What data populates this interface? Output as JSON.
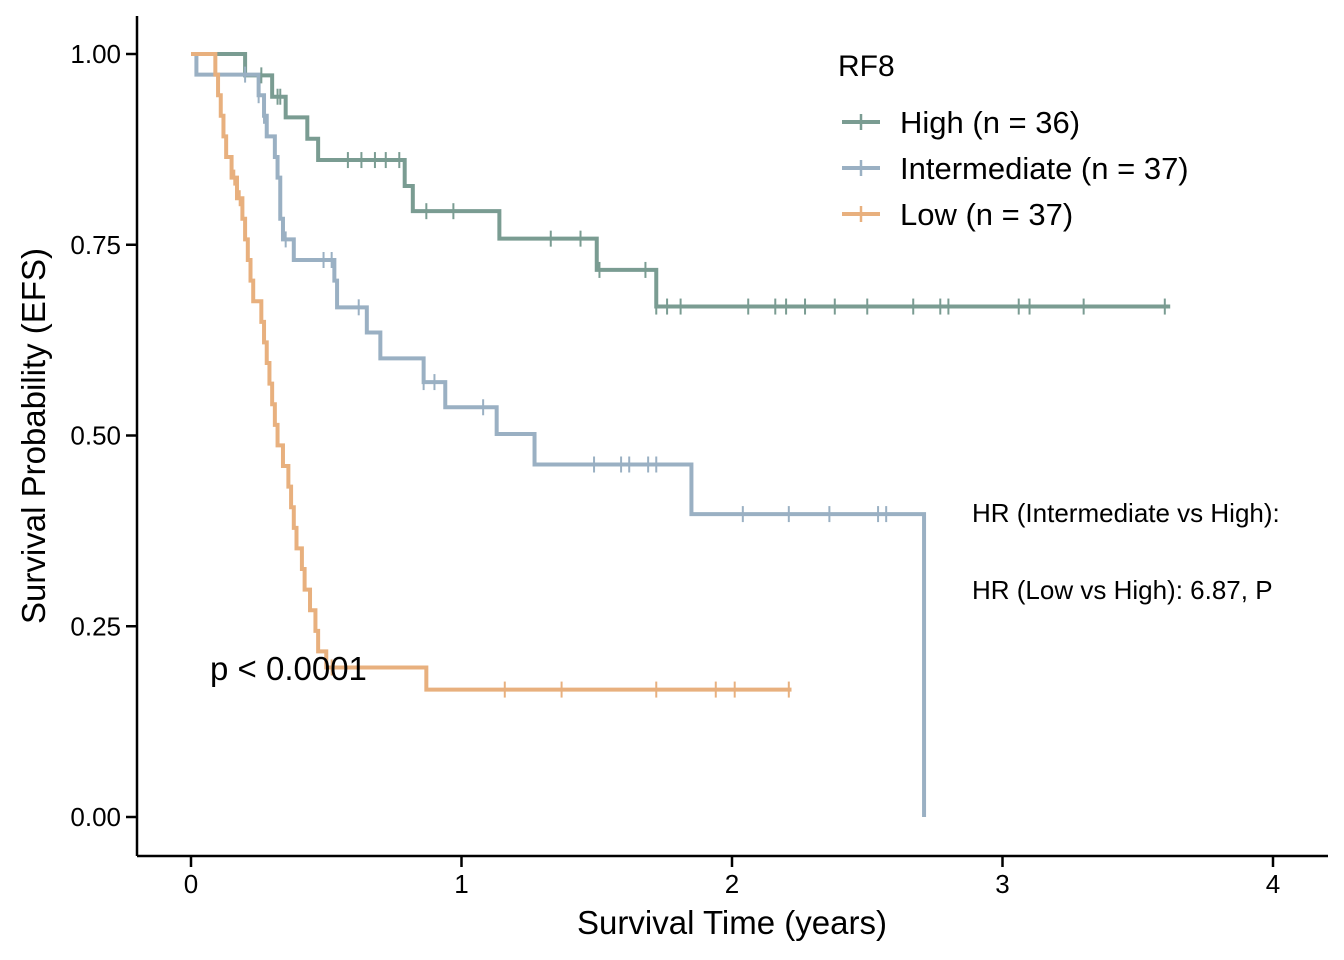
{
  "chart_data": {
    "type": "line",
    "xlabel": "Survival Time (years)",
    "ylabel": "Survival Probability (EFS)",
    "xlim": [
      -0.2,
      4.2
    ],
    "ylim": [
      -0.05,
      1.05
    ],
    "xticks": [
      0,
      1,
      2,
      3,
      4
    ],
    "xtick_labels": [
      "0",
      "1",
      "2",
      "3",
      "4"
    ],
    "yticks": [
      0,
      0.25,
      0.5,
      0.75,
      1
    ],
    "ytick_labels": [
      "0.00",
      "0.25",
      "0.50",
      "0.75",
      "1.00"
    ],
    "grid": false,
    "legend": {
      "title": "RF8",
      "position": "top-right",
      "entries": [
        "High (n = 36)",
        "Intermediate (n = 37)",
        "Low (n = 37)"
      ]
    },
    "pvalue_text": "p < 0.0001",
    "annotations": [
      "HR (Intermediate vs High):",
      "HR (Low vs High): 6.87, P"
    ],
    "series": [
      {
        "name": "High (n = 36)",
        "color": "#7a9c92",
        "steps": [
          [
            0,
            1.0
          ],
          [
            0.2,
            0.972
          ],
          [
            0.3,
            0.944
          ],
          [
            0.35,
            0.917
          ],
          [
            0.43,
            0.889
          ],
          [
            0.47,
            0.861
          ],
          [
            0.79,
            0.827
          ],
          [
            0.82,
            0.794
          ],
          [
            1.14,
            0.758
          ],
          [
            1.5,
            0.717
          ],
          [
            1.72,
            0.669
          ],
          [
            3.62,
            0.669
          ]
        ],
        "censors": [
          0.26,
          0.32,
          0.33,
          0.58,
          0.63,
          0.68,
          0.72,
          0.77,
          0.87,
          0.97,
          1.33,
          1.44,
          1.51,
          1.68,
          1.72,
          1.76,
          1.81,
          2.06,
          2.16,
          2.2,
          2.27,
          2.38,
          2.5,
          2.67,
          2.77,
          2.8,
          3.06,
          3.1,
          3.3,
          3.6
        ]
      },
      {
        "name": "Intermediate (n = 37)",
        "color": "#9ab0c3",
        "steps": [
          [
            0,
            1.0
          ],
          [
            0.02,
            0.973
          ],
          [
            0.25,
            0.946
          ],
          [
            0.27,
            0.919
          ],
          [
            0.28,
            0.892
          ],
          [
            0.31,
            0.865
          ],
          [
            0.32,
            0.838
          ],
          [
            0.33,
            0.784
          ],
          [
            0.34,
            0.757
          ],
          [
            0.38,
            0.73
          ],
          [
            0.53,
            0.703
          ],
          [
            0.54,
            0.668
          ],
          [
            0.65,
            0.635
          ],
          [
            0.7,
            0.601
          ],
          [
            0.86,
            0.57
          ],
          [
            0.94,
            0.537
          ],
          [
            1.13,
            0.502
          ],
          [
            1.27,
            0.462
          ],
          [
            1.85,
            0.397
          ],
          [
            2.71,
            0.0
          ]
        ],
        "censors": [
          0.2,
          0.25,
          0.27,
          0.35,
          0.49,
          0.52,
          0.62,
          0.86,
          0.9,
          1.08,
          1.49,
          1.59,
          1.62,
          1.69,
          1.72,
          2.04,
          2.21,
          2.36,
          2.54,
          2.57
        ]
      },
      {
        "name": "Low (n = 37)",
        "color": "#e8b07e",
        "steps": [
          [
            0,
            1.0
          ],
          [
            0.09,
            0.973
          ],
          [
            0.1,
            0.946
          ],
          [
            0.11,
            0.919
          ],
          [
            0.12,
            0.892
          ],
          [
            0.13,
            0.865
          ],
          [
            0.15,
            0.838
          ],
          [
            0.17,
            0.811
          ],
          [
            0.19,
            0.784
          ],
          [
            0.2,
            0.757
          ],
          [
            0.21,
            0.73
          ],
          [
            0.22,
            0.703
          ],
          [
            0.23,
            0.676
          ],
          [
            0.26,
            0.649
          ],
          [
            0.27,
            0.622
          ],
          [
            0.28,
            0.595
          ],
          [
            0.29,
            0.568
          ],
          [
            0.3,
            0.541
          ],
          [
            0.31,
            0.514
          ],
          [
            0.32,
            0.487
          ],
          [
            0.34,
            0.46
          ],
          [
            0.36,
            0.433
          ],
          [
            0.37,
            0.406
          ],
          [
            0.38,
            0.379
          ],
          [
            0.39,
            0.352
          ],
          [
            0.41,
            0.325
          ],
          [
            0.42,
            0.298
          ],
          [
            0.44,
            0.271
          ],
          [
            0.46,
            0.244
          ],
          [
            0.47,
            0.217
          ],
          [
            0.5,
            0.196
          ],
          [
            0.87,
            0.167
          ],
          [
            2.22,
            0.167
          ]
        ],
        "censors": [
          0.16,
          0.18,
          0.52,
          1.16,
          1.37,
          1.72,
          1.94,
          2.01,
          2.21
        ]
      }
    ]
  }
}
